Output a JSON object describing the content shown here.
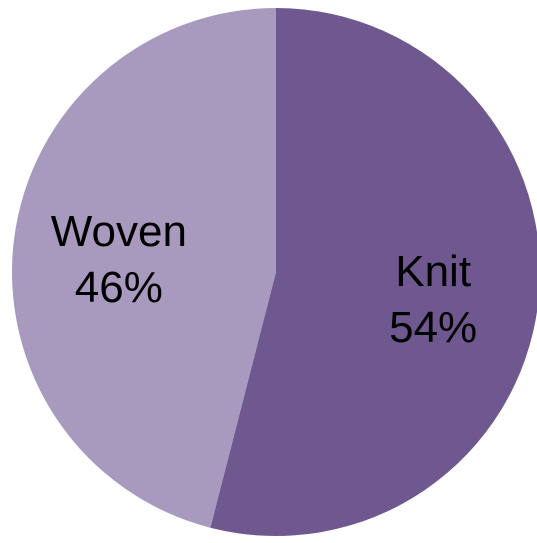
{
  "chart_data": {
    "type": "pie",
    "title": "",
    "series": [
      {
        "values": [
          54,
          46
        ]
      }
    ],
    "categories": [
      "Knit",
      "Woven"
    ],
    "labels": [
      {
        "name": "Knit",
        "percent": "54%"
      },
      {
        "name": "Woven",
        "percent": "46%"
      }
    ],
    "colors": [
      "#6f578f",
      "#a899bf"
    ],
    "start_angle_deg": 0,
    "direction": "clockwise",
    "legend": "none"
  }
}
